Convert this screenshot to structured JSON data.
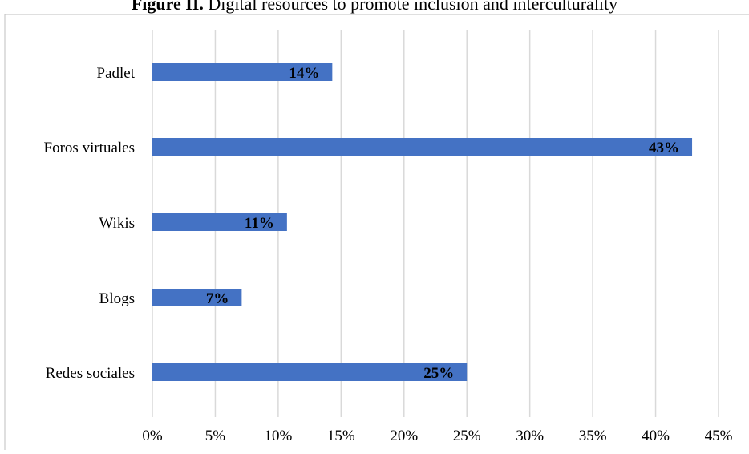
{
  "chart_data": {
    "type": "bar",
    "orientation": "horizontal",
    "title_bold": "Figure II.",
    "title_rest": " Digital resources to promote inclusion and interculturality",
    "categories": [
      "Padlet",
      "Foros virtuales",
      "Wikis",
      "Blogs",
      "Redes sociales"
    ],
    "values": [
      14.3,
      42.9,
      10.7,
      7.1,
      25.0
    ],
    "data_labels": [
      "14%",
      "43%",
      "11%",
      "7%",
      "25%"
    ],
    "xticks": [
      "0%",
      "5%",
      "10%",
      "15%",
      "20%",
      "25%",
      "30%",
      "35%",
      "40%",
      "45%"
    ],
    "xlim": [
      0,
      45
    ],
    "grid": true,
    "bar_color": "#4472c4",
    "grid_color": "#d9d9d9",
    "frame_color": "#bfbfbf"
  }
}
